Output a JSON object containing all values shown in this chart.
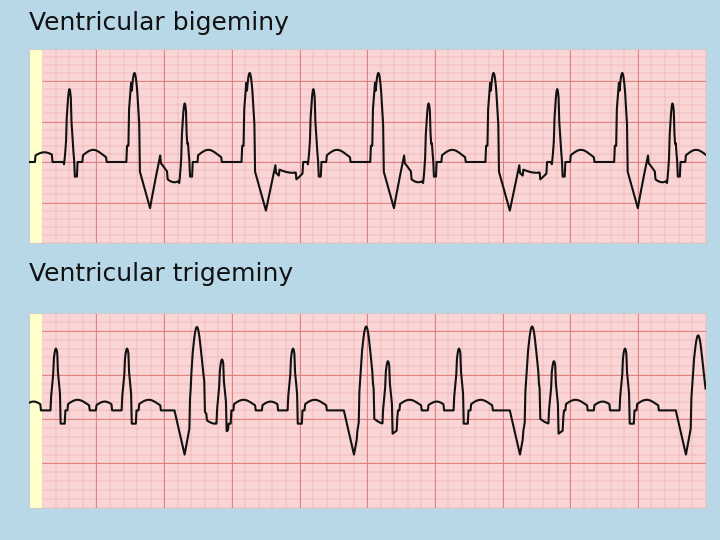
{
  "bg_color": "#b8d8e8",
  "ecg_bg_color": "#f9d5d5",
  "grid_minor_color": "#e8a0a0",
  "grid_major_color": "#e08080",
  "title1": "Ventricular bigeminy",
  "title2": "Ventricular trigeminy",
  "title_fontsize": 18,
  "title_color": "#111111",
  "line_color": "#111111",
  "line_width": 1.5,
  "panel_border_color": "#cccccc",
  "left_strip_color": "#ffffcc"
}
